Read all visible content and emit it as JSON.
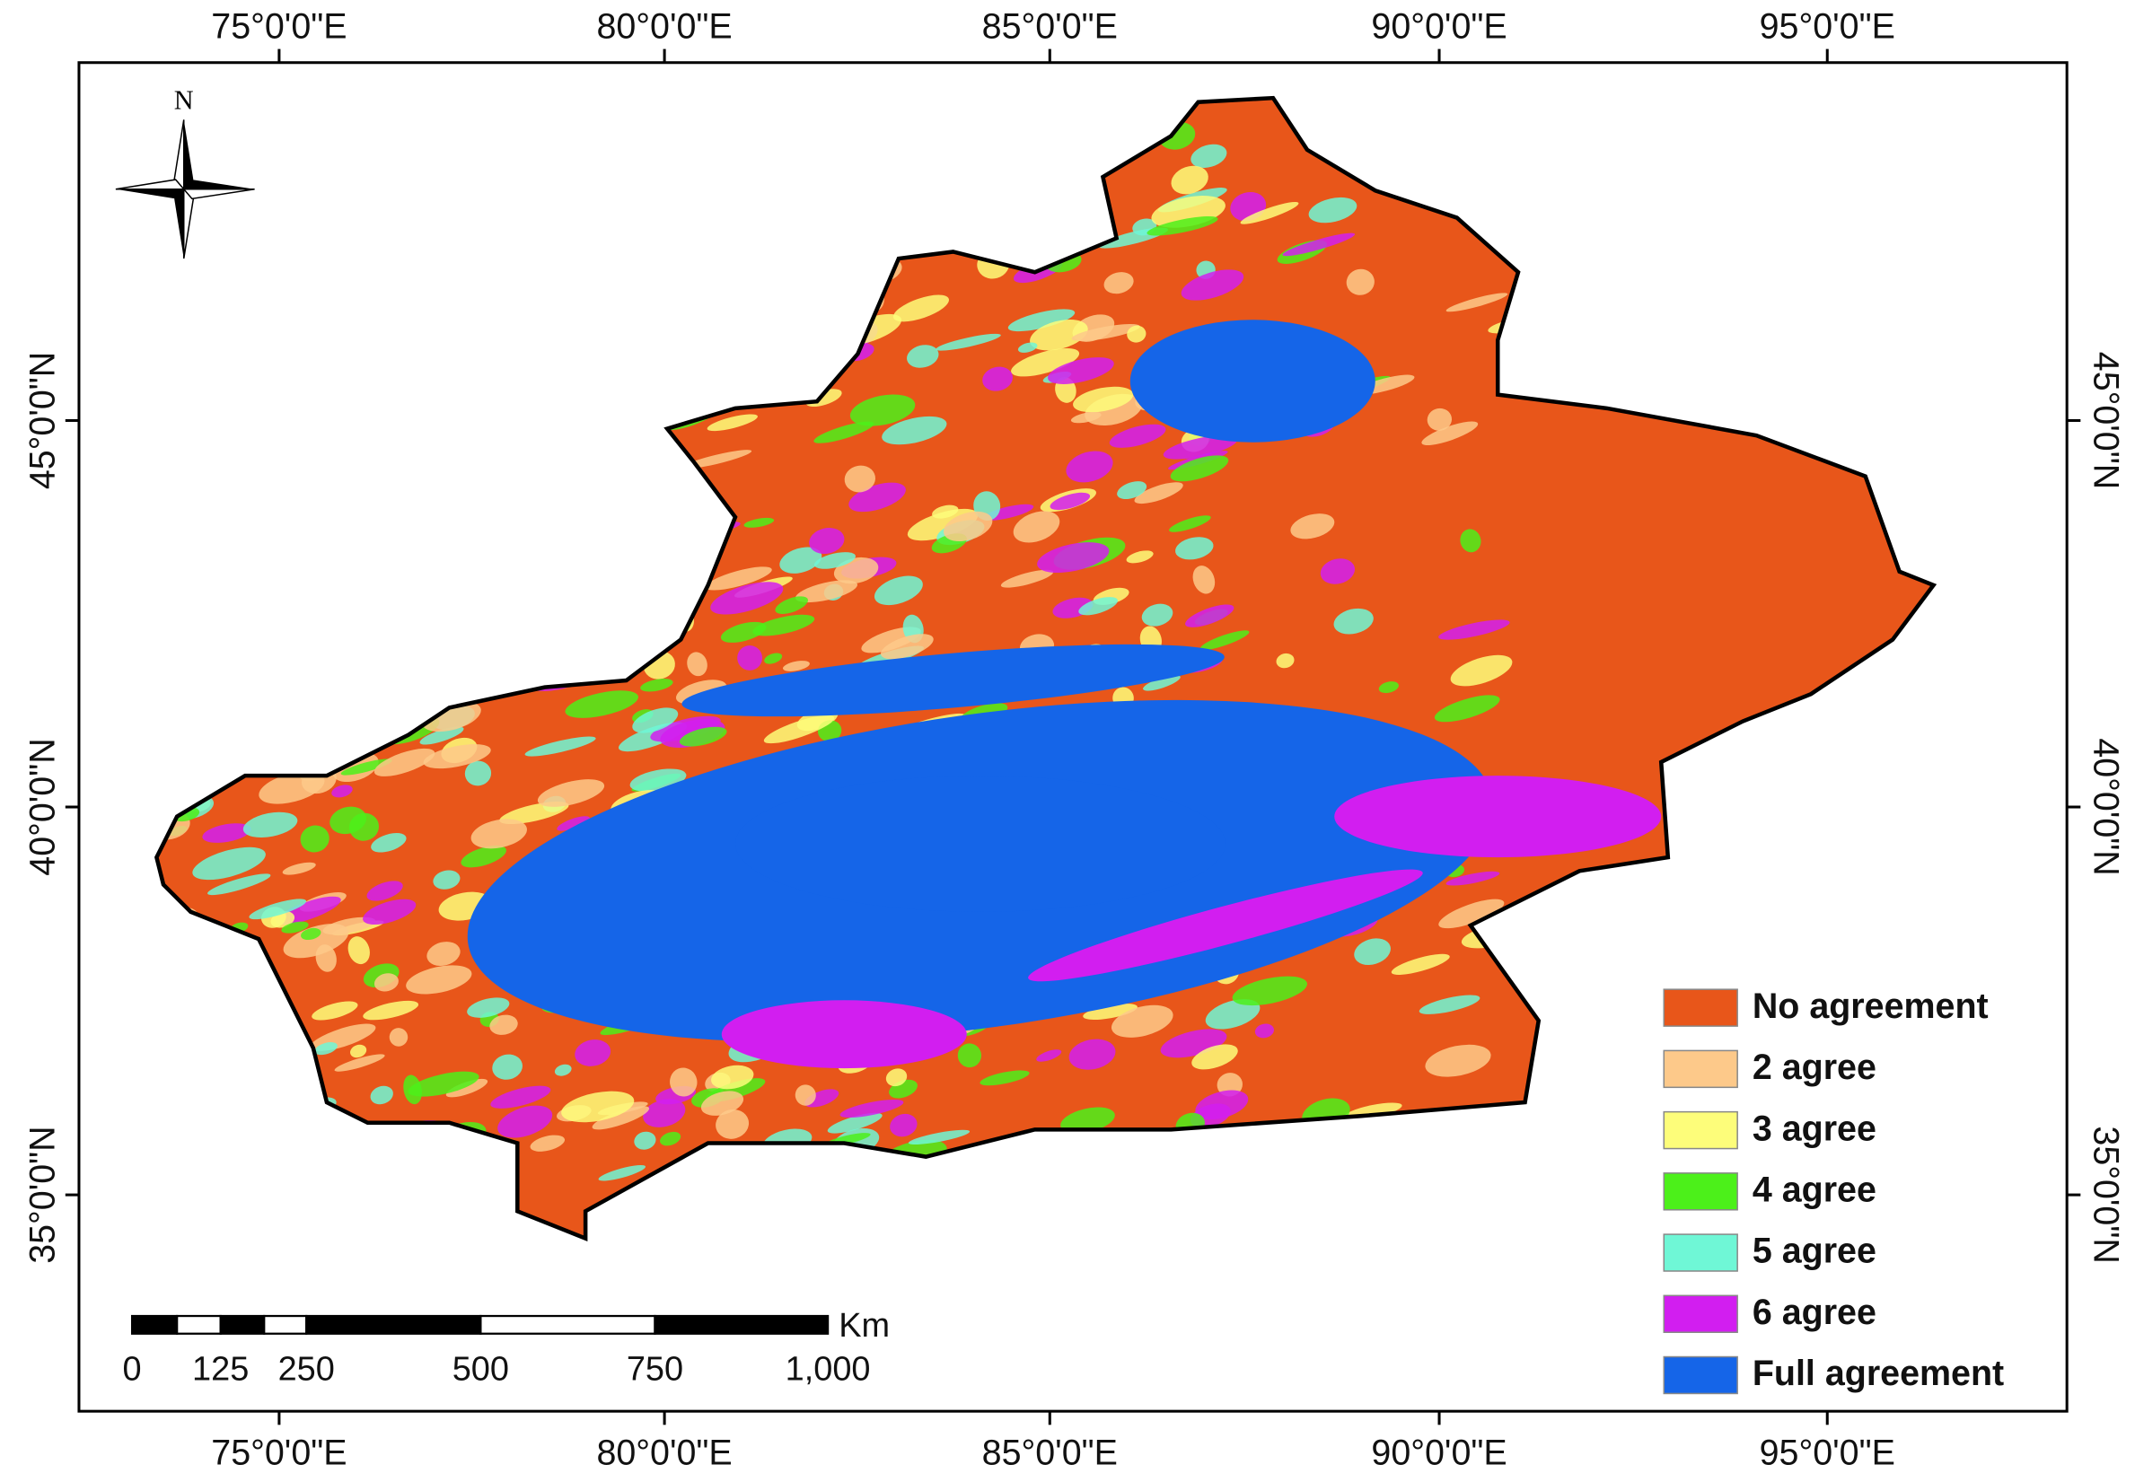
{
  "axes": {
    "top": [
      "75°0'0\"E",
      "80°0'0\"E",
      "85°0'0\"E",
      "90°0'0\"E",
      "95°0'0\"E"
    ],
    "bottom": [
      "75°0'0\"E",
      "80°0'0\"E",
      "85°0'0\"E",
      "90°0'0\"E",
      "95°0'0\"E"
    ],
    "left": [
      "45°0'0\"N",
      "40°0'0\"N",
      "35°0'0\"N"
    ],
    "right": [
      "45°0'0\"N",
      "40°0'0\"N",
      "35°0'0\"N"
    ]
  },
  "north": "N",
  "legend": [
    {
      "label": "No agreement",
      "color": "#e8561a"
    },
    {
      "label": "2 agree",
      "color": "#fdc98a"
    },
    {
      "label": "3 agree",
      "color": "#fdfd7a"
    },
    {
      "label": "4 agree",
      "color": "#4cf01a"
    },
    {
      "label": "5 agree",
      "color": "#6ff7d6"
    },
    {
      "label": "6 agree",
      "color": "#d21ef0"
    },
    {
      "label": "Full agreement",
      "color": "#1565e8"
    }
  ],
  "scale_bar": {
    "unit": "Km",
    "labels": [
      "0",
      "125",
      "250",
      "500",
      "750",
      "1,000"
    ]
  }
}
